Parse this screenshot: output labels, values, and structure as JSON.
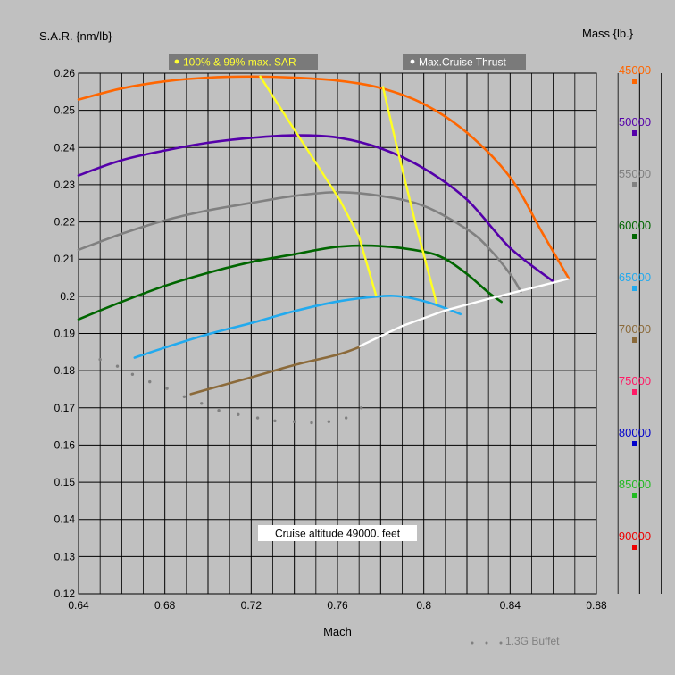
{
  "chart_data": {
    "type": "line",
    "ylabel": "S.A.R. {nm/lb}",
    "xlabel": "Mach",
    "annotation": "Cruise altitude 49000. feet",
    "xlim": [
      0.64,
      0.88
    ],
    "ylim": [
      0.12,
      0.26
    ],
    "x_ticks": [
      "0.64",
      "0.68",
      "0.72",
      "0.76",
      "0.8",
      "0.84",
      "0.88"
    ],
    "y_ticks": [
      "0.12",
      "0.13",
      "0.14",
      "0.15",
      "0.16",
      "0.17",
      "0.18",
      "0.19",
      "0.2",
      "0.21",
      "0.22",
      "0.23",
      "0.24",
      "0.25",
      "0.26"
    ],
    "legend_title": "Mass {lb.}",
    "legend_labels": {
      "max_sar": "100% & 99% max. SAR",
      "max_cruise": "Max.Cruise Thrust",
      "buffet": "1.3G Buffet"
    },
    "mass_legend": [
      {
        "label": "45000",
        "color": "#ff6600"
      },
      {
        "label": "50000",
        "color": "#5500aa"
      },
      {
        "label": "55000",
        "color": "#808080"
      },
      {
        "label": "60000",
        "color": "#006600"
      },
      {
        "label": "65000",
        "color": "#22aaee"
      },
      {
        "label": "70000",
        "color": "#8b6a3a"
      },
      {
        "label": "75000",
        "color": "#ff1a66"
      },
      {
        "label": "80000",
        "color": "#0000cc"
      },
      {
        "label": "85000",
        "color": "#22bb22"
      },
      {
        "label": "90000",
        "color": "#ee0000"
      }
    ],
    "series": [
      {
        "name": "45000",
        "color": "#ff6600",
        "points": [
          [
            0.64,
            0.2529
          ],
          [
            0.66,
            0.2559
          ],
          [
            0.68,
            0.2578
          ],
          [
            0.7,
            0.2588
          ],
          [
            0.72,
            0.2591
          ],
          [
            0.74,
            0.2588
          ],
          [
            0.76,
            0.258
          ],
          [
            0.78,
            0.256
          ],
          [
            0.8,
            0.2517
          ],
          [
            0.82,
            0.244
          ],
          [
            0.84,
            0.232
          ],
          [
            0.855,
            0.217
          ],
          [
            0.867,
            0.205
          ]
        ]
      },
      {
        "name": "50000",
        "color": "#5500aa",
        "points": [
          [
            0.64,
            0.2325
          ],
          [
            0.66,
            0.2366
          ],
          [
            0.68,
            0.2392
          ],
          [
            0.7,
            0.2413
          ],
          [
            0.72,
            0.2426
          ],
          [
            0.74,
            0.2433
          ],
          [
            0.76,
            0.2427
          ],
          [
            0.78,
            0.2398
          ],
          [
            0.8,
            0.2344
          ],
          [
            0.82,
            0.226
          ],
          [
            0.84,
            0.213
          ],
          [
            0.86,
            0.204
          ]
        ]
      },
      {
        "name": "55000",
        "color": "#808080",
        "points": [
          [
            0.64,
            0.2125
          ],
          [
            0.66,
            0.2168
          ],
          [
            0.68,
            0.2204
          ],
          [
            0.7,
            0.2231
          ],
          [
            0.72,
            0.2251
          ],
          [
            0.74,
            0.227
          ],
          [
            0.76,
            0.228
          ],
          [
            0.78,
            0.227
          ],
          [
            0.8,
            0.2243
          ],
          [
            0.82,
            0.218
          ],
          [
            0.83,
            0.213
          ],
          [
            0.84,
            0.206
          ],
          [
            0.845,
            0.2012
          ]
        ]
      },
      {
        "name": "60000",
        "color": "#006600",
        "points": [
          [
            0.64,
            0.1938
          ],
          [
            0.66,
            0.1985
          ],
          [
            0.68,
            0.2028
          ],
          [
            0.7,
            0.2063
          ],
          [
            0.72,
            0.2092
          ],
          [
            0.74,
            0.2113
          ],
          [
            0.76,
            0.2133
          ],
          [
            0.78,
            0.2135
          ],
          [
            0.8,
            0.212
          ],
          [
            0.81,
            0.21
          ],
          [
            0.82,
            0.206
          ],
          [
            0.83,
            0.201
          ],
          [
            0.836,
            0.1985
          ]
        ]
      },
      {
        "name": "65000",
        "color": "#22aaee",
        "points": [
          [
            0.666,
            0.1835
          ],
          [
            0.68,
            0.1862
          ],
          [
            0.7,
            0.1898
          ],
          [
            0.72,
            0.1928
          ],
          [
            0.74,
            0.196
          ],
          [
            0.76,
            0.1986
          ],
          [
            0.78,
            0.2
          ],
          [
            0.79,
            0.1999
          ],
          [
            0.8,
            0.1987
          ],
          [
            0.81,
            0.1968
          ],
          [
            0.817,
            0.1952
          ]
        ]
      },
      {
        "name": "70000",
        "color": "#8b6a3a",
        "points": [
          [
            0.692,
            0.1737
          ],
          [
            0.7,
            0.175
          ],
          [
            0.72,
            0.1782
          ],
          [
            0.74,
            0.1815
          ],
          [
            0.76,
            0.1843
          ],
          [
            0.77,
            0.1863
          ]
        ]
      }
    ],
    "max_sar_100": [
      [
        0.724,
        0.2593
      ],
      [
        0.737,
        0.2475
      ],
      [
        0.749,
        0.2368
      ],
      [
        0.761,
        0.226
      ],
      [
        0.77,
        0.216
      ],
      [
        0.778,
        0.2
      ]
    ],
    "max_sar_99": [
      [
        0.781,
        0.2565
      ],
      [
        0.788,
        0.239
      ],
      [
        0.796,
        0.22
      ],
      [
        0.806,
        0.198
      ]
    ],
    "max_cruise_thrust": [
      [
        0.77,
        0.1865
      ],
      [
        0.79,
        0.192
      ],
      [
        0.81,
        0.1962
      ],
      [
        0.83,
        0.1993
      ],
      [
        0.85,
        0.2022
      ],
      [
        0.867,
        0.2047
      ]
    ],
    "buffet": [
      [
        0.65,
        0.183
      ],
      [
        0.658,
        0.1812
      ],
      [
        0.665,
        0.179
      ],
      [
        0.673,
        0.177
      ],
      [
        0.681,
        0.1752
      ],
      [
        0.689,
        0.173
      ],
      [
        0.697,
        0.1712
      ],
      [
        0.705,
        0.1693
      ],
      [
        0.714,
        0.1682
      ],
      [
        0.723,
        0.1673
      ],
      [
        0.731,
        0.1665
      ],
      [
        0.74,
        0.1663
      ],
      [
        0.748,
        0.166
      ],
      [
        0.756,
        0.1663
      ],
      [
        0.764,
        0.1673
      ],
      [
        0.771,
        0.17
      ]
    ],
    "grid": true,
    "legend_placement": "right"
  }
}
